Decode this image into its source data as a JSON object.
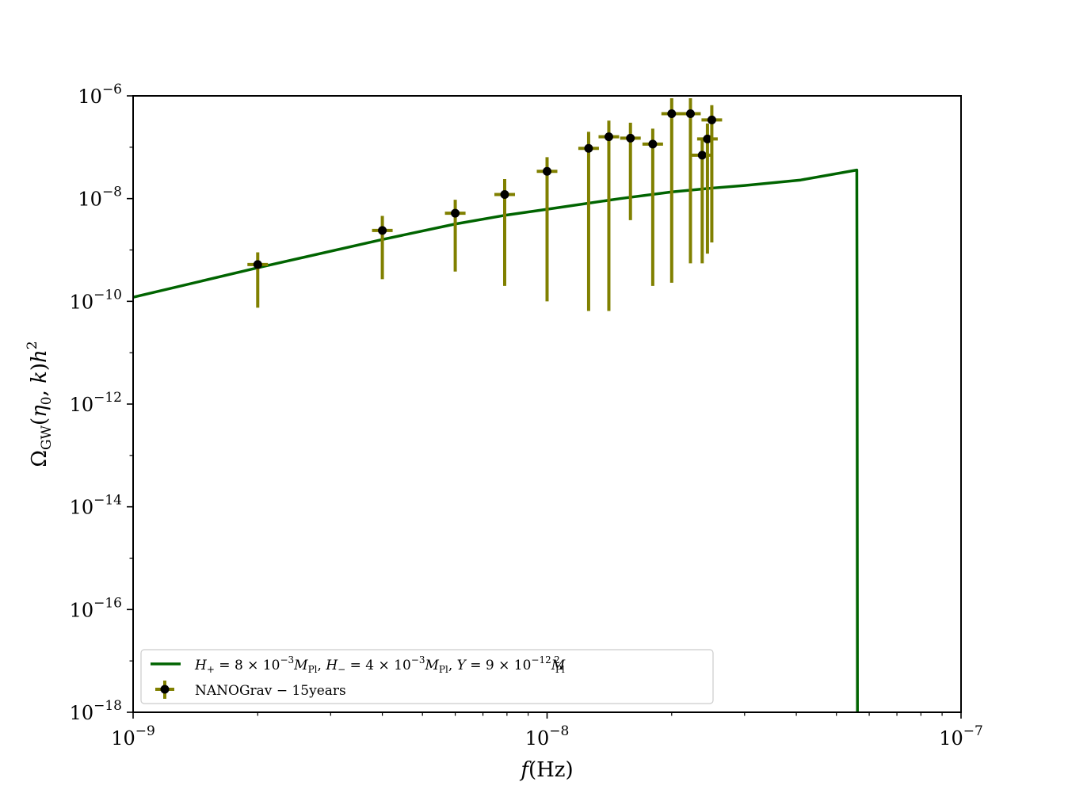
{
  "chart_data": {
    "type": "line",
    "xscale": "log",
    "yscale": "log",
    "xlim": [
      1e-09,
      1e-07
    ],
    "ylim": [
      1e-18,
      1e-06
    ],
    "xlabel": "f(Hz)",
    "ylabel": "Ω_GW(η_0, k)h^2",
    "xticks": [
      {
        "value": 1e-09,
        "base": "10",
        "exp": "−9"
      },
      {
        "value": 1e-08,
        "base": "10",
        "exp": "−8"
      },
      {
        "value": 1e-07,
        "base": "10",
        "exp": "−7"
      }
    ],
    "yticks": [
      {
        "value": 1e-18,
        "base": "10",
        "exp": "−18"
      },
      {
        "value": 1e-16,
        "base": "10",
        "exp": "−16"
      },
      {
        "value": 1e-14,
        "base": "10",
        "exp": "−14"
      },
      {
        "value": 1e-12,
        "base": "10",
        "exp": "−12"
      },
      {
        "value": 1e-10,
        "base": "10",
        "exp": "−10"
      },
      {
        "value": 1e-08,
        "base": "10",
        "exp": "−8"
      },
      {
        "value": 1e-06,
        "base": "10",
        "exp": "−6"
      }
    ],
    "grid": false,
    "legend_position": "lower-left",
    "series": [
      {
        "name": "H₊ = 8 × 10⁻³ M_Pl,   H₋ = 4 × 10⁻³ M_Pl,   Y = 9 × 10⁻¹² M_Pl²",
        "kind": "line",
        "color": "#006400",
        "x": [
          1e-09,
          2e-09,
          4e-09,
          6e-09,
          8e-09,
          1e-08,
          1.5e-08,
          2e-08,
          2.5e-08,
          3e-08,
          4.1e-08,
          5.6e-08,
          5.61e-08,
          5.62e-08
        ],
        "y": [
          1.2e-10,
          4.5e-10,
          1.6e-09,
          3.2e-09,
          4.8e-09,
          6.2e-09,
          1e-08,
          1.35e-08,
          1.6e-08,
          1.8e-08,
          2.3e-08,
          3.6e-08,
          1e-11,
          1e-18
        ]
      },
      {
        "name": "NANOGrav − 15years",
        "kind": "errorbar",
        "marker_color": "#000000",
        "errorbar_color": "#808000",
        "points": [
          {
            "x": 2e-09,
            "y": 5.2e-10,
            "ylow": 7.5e-11,
            "yhigh": 9e-10
          },
          {
            "x": 4e-09,
            "y": 2.4e-09,
            "ylow": 2.7e-10,
            "yhigh": 4.6e-09
          },
          {
            "x": 6e-09,
            "y": 5.2e-09,
            "ylow": 3.8e-10,
            "yhigh": 9.5e-09
          },
          {
            "x": 7.9e-09,
            "y": 1.2e-08,
            "ylow": 2e-10,
            "yhigh": 2.4e-08
          },
          {
            "x": 1e-08,
            "y": 3.4e-08,
            "ylow": 1e-10,
            "yhigh": 6.4e-08
          },
          {
            "x": 1.26e-08,
            "y": 9.5e-08,
            "ylow": 6.5e-11,
            "yhigh": 2e-07
          },
          {
            "x": 1.41e-08,
            "y": 1.6e-07,
            "ylow": 6.5e-11,
            "yhigh": 3.3e-07
          },
          {
            "x": 1.59e-08,
            "y": 1.5e-07,
            "ylow": 3.8e-09,
            "yhigh": 3e-07
          },
          {
            "x": 1.8e-08,
            "y": 1.15e-07,
            "ylow": 2e-10,
            "yhigh": 2.3e-07
          },
          {
            "x": 2e-08,
            "y": 4.5e-07,
            "ylow": 2.3e-10,
            "yhigh": 9e-07
          },
          {
            "x": 2.22e-08,
            "y": 4.5e-07,
            "ylow": 5.5e-10,
            "yhigh": 9e-07
          },
          {
            "x": 2.37e-08,
            "y": 7e-08,
            "ylow": 5.5e-10,
            "yhigh": 1.4e-07
          },
          {
            "x": 2.44e-08,
            "y": 1.45e-07,
            "ylow": 8.5e-10,
            "yhigh": 2.9e-07
          },
          {
            "x": 2.5e-08,
            "y": 3.4e-07,
            "ylow": 1.4e-09,
            "yhigh": 6.6e-07
          }
        ]
      }
    ]
  }
}
